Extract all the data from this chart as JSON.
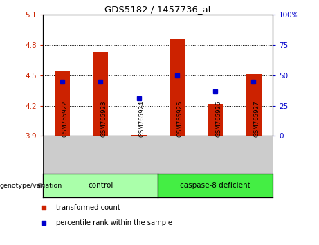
{
  "title": "GDS5182 / 1457736_at",
  "samples": [
    "GSM765922",
    "GSM765923",
    "GSM765924",
    "GSM765925",
    "GSM765926",
    "GSM765927"
  ],
  "red_values": [
    4.55,
    4.73,
    3.91,
    4.855,
    4.22,
    4.51
  ],
  "blue_values": [
    4.435,
    4.44,
    4.27,
    4.5,
    4.34,
    4.435
  ],
  "y_min": 3.9,
  "y_max": 5.1,
  "y_ticks_left": [
    3.9,
    4.2,
    4.5,
    4.8,
    5.1
  ],
  "y_ticks_right": [
    0,
    25,
    50,
    75,
    100
  ],
  "groups": [
    {
      "label": "control",
      "samples": [
        0,
        1,
        2
      ],
      "color": "#AAFFAA"
    },
    {
      "label": "caspase-8 deficient",
      "samples": [
        3,
        4,
        5
      ],
      "color": "#44EE44"
    }
  ],
  "bar_color": "#CC2200",
  "blue_color": "#0000CC",
  "baseline": 3.9,
  "left_tick_color": "#CC2200",
  "right_tick_color": "#0000CC",
  "legend_red_label": "transformed count",
  "legend_blue_label": "percentile rank within the sample",
  "genotype_label": "genotype/variation",
  "sample_box_color": "#CCCCCC",
  "bar_width": 0.4
}
